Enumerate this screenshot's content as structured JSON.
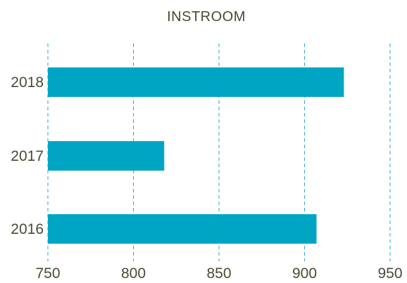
{
  "chart_data": {
    "type": "bar",
    "orientation": "horizontal",
    "title": "INSTROOM",
    "categories": [
      "2018",
      "2017",
      "2016"
    ],
    "values": [
      923,
      818,
      907
    ],
    "xlim": [
      750,
      950
    ],
    "x_ticks": [
      "750",
      "800",
      "850",
      "900",
      "950"
    ],
    "xlabel": "",
    "ylabel": "",
    "grid": true,
    "legend": "none",
    "bar_color": "#00a5c4",
    "grid_color": "#2aa6c9",
    "text_color": "#4a4a35"
  }
}
